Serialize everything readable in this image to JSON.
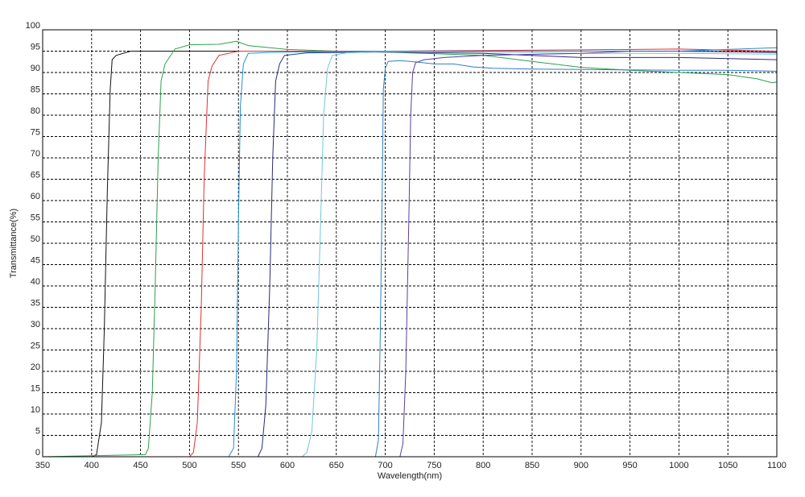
{
  "chart_data": {
    "type": "line",
    "title": "",
    "xlabel": "Wavelength(nm)",
    "ylabel": "Transmittance(%)",
    "xlim": [
      350,
      1100
    ],
    "ylim": [
      0,
      100
    ],
    "x_ticks": [
      "350",
      "400",
      "450",
      "500",
      "550",
      "600",
      "650",
      "700",
      "750",
      "800",
      "850",
      "900",
      "950",
      "1000",
      "1050",
      "1100"
    ],
    "y_ticks": [
      "0",
      "5",
      "10",
      "15",
      "20",
      "25",
      "30",
      "35",
      "40",
      "45",
      "50",
      "55",
      "60",
      "65",
      "70",
      "75",
      "80",
      "85",
      "90",
      "95",
      "100"
    ],
    "grid": true,
    "legend": "none",
    "series": [
      {
        "color": "#111111",
        "points": [
          [
            350,
            0
          ],
          [
            400,
            0
          ],
          [
            405,
            0.5
          ],
          [
            410,
            8
          ],
          [
            413,
            30
          ],
          [
            416,
            62
          ],
          [
            419,
            86
          ],
          [
            421,
            93
          ],
          [
            425,
            94
          ],
          [
            440,
            95
          ],
          [
            500,
            95
          ],
          [
            700,
            95
          ],
          [
            900,
            95
          ],
          [
            1000,
            95
          ],
          [
            1100,
            94.7
          ]
        ]
      },
      {
        "color": "#2e9e4f",
        "points": [
          [
            350,
            0
          ],
          [
            455,
            0.5
          ],
          [
            458,
            2
          ],
          [
            462,
            15
          ],
          [
            465,
            40
          ],
          [
            468,
            70
          ],
          [
            471,
            88
          ],
          [
            475,
            92
          ],
          [
            485,
            95.5
          ],
          [
            500,
            96.5
          ],
          [
            530,
            96.6
          ],
          [
            548,
            97.3
          ],
          [
            560,
            96.3
          ],
          [
            600,
            95.4
          ],
          [
            650,
            95
          ],
          [
            700,
            94.8
          ],
          [
            800,
            94
          ],
          [
            850,
            92.6
          ],
          [
            900,
            91.2
          ],
          [
            950,
            90.5
          ],
          [
            1000,
            90
          ],
          [
            1050,
            89.5
          ],
          [
            1080,
            88.5
          ],
          [
            1095,
            87.6
          ],
          [
            1100,
            87.8
          ]
        ]
      },
      {
        "color": "#e03030",
        "points": [
          [
            350,
            0
          ],
          [
            500,
            0
          ],
          [
            504,
            1
          ],
          [
            508,
            8
          ],
          [
            512,
            35
          ],
          [
            515,
            65
          ],
          [
            519,
            88
          ],
          [
            523,
            91.5
          ],
          [
            530,
            94
          ],
          [
            550,
            95
          ],
          [
            700,
            95
          ],
          [
            900,
            95.3
          ],
          [
            1000,
            95.5
          ],
          [
            1100,
            95
          ]
        ]
      },
      {
        "color": "#1f8fd6",
        "points": [
          [
            350,
            0
          ],
          [
            540,
            0
          ],
          [
            545,
            2
          ],
          [
            548,
            20
          ],
          [
            550,
            55
          ],
          [
            552,
            82
          ],
          [
            555,
            92
          ],
          [
            560,
            94.5
          ],
          [
            580,
            94.7
          ],
          [
            600,
            94.8
          ],
          [
            700,
            95
          ],
          [
            800,
            95
          ],
          [
            900,
            95
          ],
          [
            1000,
            95
          ],
          [
            1100,
            95.8
          ]
        ]
      },
      {
        "color": "#2a2a7a",
        "points": [
          [
            350,
            0
          ],
          [
            570,
            0
          ],
          [
            574,
            2
          ],
          [
            578,
            12
          ],
          [
            582,
            40
          ],
          [
            585,
            70
          ],
          [
            588,
            88
          ],
          [
            592,
            92
          ],
          [
            597,
            94
          ],
          [
            620,
            94.6
          ],
          [
            700,
            94.8
          ],
          [
            800,
            94.5
          ],
          [
            900,
            93.5
          ],
          [
            1000,
            93.5
          ],
          [
            1100,
            93
          ]
        ]
      },
      {
        "color": "#6ec9d8",
        "points": [
          [
            350,
            0
          ],
          [
            615,
            0
          ],
          [
            620,
            1
          ],
          [
            625,
            6
          ],
          [
            630,
            25
          ],
          [
            634,
            55
          ],
          [
            637,
            80
          ],
          [
            641,
            91
          ],
          [
            646,
            94
          ],
          [
            660,
            94.6
          ],
          [
            700,
            94.9
          ],
          [
            800,
            94.8
          ],
          [
            900,
            94.5
          ],
          [
            1000,
            94.5
          ],
          [
            1100,
            94.3
          ]
        ]
      },
      {
        "color": "#2f7fc4",
        "points": [
          [
            350,
            0
          ],
          [
            690,
            0
          ],
          [
            693,
            4
          ],
          [
            695,
            30
          ],
          [
            697,
            65
          ],
          [
            698,
            86
          ],
          [
            700,
            91
          ],
          [
            703,
            92.6
          ],
          [
            715,
            92.8
          ],
          [
            730,
            92.5
          ],
          [
            750,
            92
          ],
          [
            770,
            92
          ],
          [
            790,
            91.3
          ],
          [
            810,
            91
          ],
          [
            850,
            90.8
          ],
          [
            900,
            90.7
          ],
          [
            950,
            90.6
          ],
          [
            1000,
            90.5
          ],
          [
            1050,
            90.5
          ],
          [
            1100,
            90.3
          ]
        ]
      },
      {
        "color": "#5a3fa0",
        "points": [
          [
            350,
            0
          ],
          [
            715,
            0
          ],
          [
            718,
            3
          ],
          [
            721,
            20
          ],
          [
            724,
            55
          ],
          [
            726,
            80
          ],
          [
            728,
            90
          ],
          [
            731,
            92.3
          ],
          [
            740,
            93
          ],
          [
            760,
            93.5
          ],
          [
            800,
            94
          ],
          [
            900,
            94.5
          ],
          [
            950,
            95
          ],
          [
            1000,
            95
          ],
          [
            1100,
            94.8
          ]
        ]
      }
    ]
  }
}
